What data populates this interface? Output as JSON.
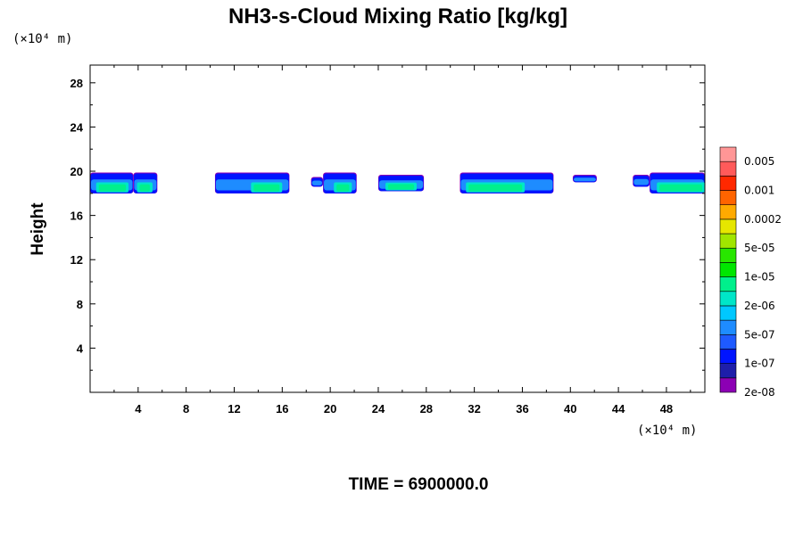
{
  "chart_data": {
    "type": "contour",
    "title": "NH3-s-Cloud Mixing Ratio [kg/kg]",
    "ylabel": "Height",
    "xlabel": "",
    "x_unit": "(×10⁴ m)",
    "y_unit": "(×10⁴ m)",
    "footer": "TIME = 6900000.0",
    "xlim": [
      0,
      51.2
    ],
    "ylim": [
      0,
      29.6
    ],
    "x_ticks": [
      4,
      8,
      12,
      16,
      20,
      24,
      28,
      32,
      36,
      40,
      44,
      48
    ],
    "y_ticks": [
      4,
      8,
      12,
      16,
      20,
      24,
      28
    ],
    "colorbar": {
      "labels": [
        "0.005",
        "0.001",
        "0.0002",
        "5e-05",
        "1e-05",
        "2e-06",
        "5e-07",
        "1e-07",
        "2e-08"
      ],
      "colors": [
        "#8c00b4",
        "#1e1eaa",
        "#0014ff",
        "#1e5aff",
        "#1e8cff",
        "#00c8ff",
        "#00e6c8",
        "#00f08c",
        "#00e600",
        "#28e600",
        "#a0e600",
        "#e6e600",
        "#ffaa00",
        "#ff6400",
        "#ff2800",
        "#ff5a5a",
        "#ff9696"
      ]
    },
    "cloud_features": [
      {
        "x": [
          0.0,
          3.6
        ],
        "y": [
          18.0,
          19.8
        ],
        "core": [
          0.5,
          3.2
        ]
      },
      {
        "x": [
          3.6,
          5.6
        ],
        "y": [
          18.0,
          19.8
        ],
        "core": [
          3.9,
          5.2
        ]
      },
      {
        "x": [
          10.4,
          16.6
        ],
        "y": [
          18.0,
          19.8
        ],
        "core": [
          13.4,
          16.0
        ]
      },
      {
        "x": [
          18.4,
          19.4
        ],
        "y": [
          18.6,
          19.4
        ],
        "core": null
      },
      {
        "x": [
          19.4,
          22.2
        ],
        "y": [
          18.0,
          19.8
        ],
        "core": [
          20.3,
          21.8
        ]
      },
      {
        "x": [
          24.0,
          27.8
        ],
        "y": [
          18.2,
          19.6
        ],
        "core": [
          24.6,
          27.2
        ]
      },
      {
        "x": [
          30.8,
          38.6
        ],
        "y": [
          18.0,
          19.8
        ],
        "core": [
          31.3,
          36.2
        ]
      },
      {
        "x": [
          40.2,
          42.2
        ],
        "y": [
          19.0,
          19.6
        ],
        "core": null
      },
      {
        "x": [
          45.2,
          46.6
        ],
        "y": [
          18.6,
          19.6
        ],
        "core": null
      },
      {
        "x": [
          46.6,
          51.2
        ],
        "y": [
          18.0,
          19.8
        ],
        "core": [
          47.2,
          51.2
        ]
      }
    ]
  }
}
